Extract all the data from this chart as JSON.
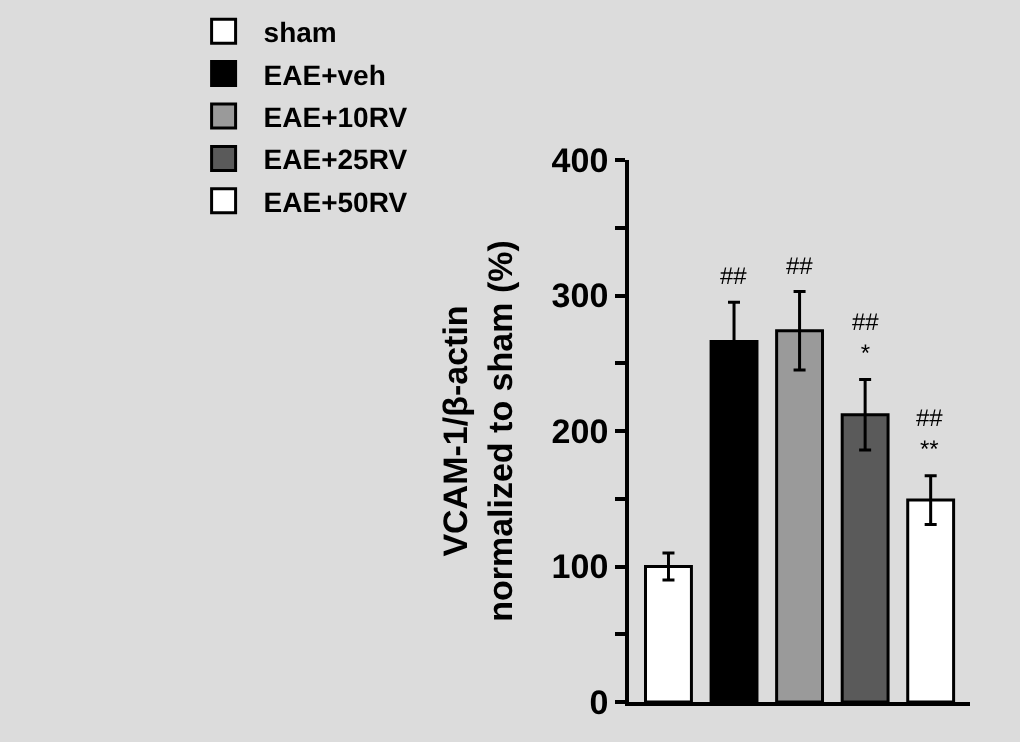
{
  "chart_data": {
    "type": "bar",
    "ylabel": "VCAM-1/β-actin\nnormalized to sham (%)",
    "categories": [
      null,
      null,
      null,
      null,
      null
    ],
    "series": [
      {
        "name": "sham",
        "color": "#ffffff",
        "values": [
          100,
          null,
          null,
          null,
          null
        ],
        "errors": [
          10,
          null,
          null,
          null,
          null
        ]
      },
      {
        "name": "EAE+veh",
        "color": "#000000",
        "values": [
          null,
          266,
          null,
          null,
          null
        ],
        "errors": [
          null,
          29,
          null,
          null,
          null
        ],
        "value_labels": [
          null,
          "##",
          null,
          null,
          null
        ]
      },
      {
        "name": "EAE+10RV",
        "color": "#9a9a9a",
        "values": [
          null,
          null,
          274,
          null,
          null
        ],
        "errors": [
          null,
          null,
          29,
          null,
          null
        ],
        "value_labels": [
          null,
          null,
          "##",
          null,
          null
        ]
      },
      {
        "name": "EAE+25RV",
        "color": "#5a5a5a",
        "values": [
          null,
          null,
          null,
          212,
          null
        ],
        "errors": [
          null,
          null,
          null,
          26,
          null
        ],
        "value_labels": [
          null,
          null,
          null,
          "##\n*",
          null
        ]
      },
      {
        "name": "EAE+50RV",
        "color": "#ffffff",
        "values": [
          null,
          null,
          null,
          null,
          149
        ],
        "errors": [
          null,
          null,
          null,
          null,
          18
        ],
        "value_labels": [
          null,
          null,
          null,
          null,
          "##\n**"
        ]
      }
    ],
    "ylim": [
      0,
      400
    ],
    "yticks": [
      0,
      {
        "value": 50,
        "label": null
      },
      100,
      {
        "value": 150,
        "label": null
      },
      200,
      {
        "value": 250,
        "label": null
      },
      300,
      {
        "value": 350,
        "label": null
      },
      400
    ],
    "tick_labels": "y",
    "grid": false,
    "legend": "top"
  }
}
